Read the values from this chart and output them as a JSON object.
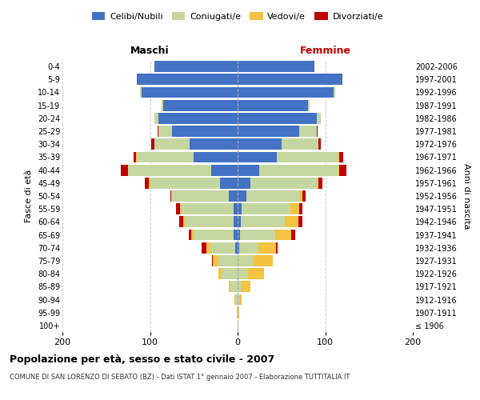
{
  "age_groups": [
    "100+",
    "95-99",
    "90-94",
    "85-89",
    "80-84",
    "75-79",
    "70-74",
    "65-69",
    "60-64",
    "55-59",
    "50-54",
    "45-49",
    "40-44",
    "35-39",
    "30-34",
    "25-29",
    "20-24",
    "15-19",
    "10-14",
    "5-9",
    "0-4"
  ],
  "birth_years": [
    "≤ 1906",
    "1907-1911",
    "1912-1916",
    "1917-1921",
    "1922-1926",
    "1927-1931",
    "1932-1936",
    "1937-1941",
    "1942-1946",
    "1947-1951",
    "1952-1956",
    "1957-1961",
    "1962-1966",
    "1967-1971",
    "1972-1976",
    "1977-1981",
    "1982-1986",
    "1987-1991",
    "1992-1996",
    "1997-2001",
    "2002-2006"
  ],
  "male": {
    "celibe": [
      0,
      0,
      0,
      0,
      0,
      0,
      3,
      5,
      5,
      5,
      10,
      20,
      30,
      50,
      55,
      75,
      90,
      85,
      110,
      115,
      95
    ],
    "coniugato": [
      0,
      1,
      3,
      8,
      18,
      22,
      28,
      45,
      55,
      60,
      65,
      80,
      95,
      65,
      40,
      15,
      5,
      2,
      1,
      0,
      0
    ],
    "vedovo": [
      0,
      0,
      1,
      2,
      4,
      6,
      5,
      3,
      2,
      1,
      1,
      1,
      0,
      1,
      0,
      0,
      0,
      0,
      0,
      0,
      0
    ],
    "divorziato": [
      0,
      0,
      0,
      0,
      0,
      1,
      5,
      3,
      5,
      4,
      1,
      5,
      8,
      3,
      4,
      1,
      0,
      0,
      0,
      0,
      0
    ]
  },
  "female": {
    "nubile": [
      0,
      0,
      0,
      0,
      0,
      0,
      2,
      3,
      4,
      5,
      10,
      15,
      25,
      45,
      50,
      70,
      90,
      80,
      110,
      120,
      88
    ],
    "coniugata": [
      0,
      1,
      2,
      5,
      12,
      18,
      22,
      40,
      50,
      55,
      60,
      75,
      90,
      70,
      42,
      20,
      5,
      2,
      1,
      0,
      0
    ],
    "vedova": [
      1,
      1,
      3,
      10,
      18,
      22,
      20,
      18,
      15,
      10,
      4,
      2,
      1,
      1,
      0,
      0,
      0,
      0,
      0,
      0,
      0
    ],
    "divorziata": [
      0,
      0,
      0,
      0,
      0,
      0,
      2,
      5,
      5,
      4,
      4,
      5,
      8,
      5,
      3,
      1,
      0,
      0,
      0,
      0,
      0
    ]
  },
  "colors": {
    "celibe": "#4472C4",
    "coniugato": "#C5D6A0",
    "vedovo": "#F5C242",
    "divorziato": "#C00000"
  },
  "title": "Popolazione per età, sesso e stato civile - 2007",
  "subtitle": "COMUNE DI SAN LORENZO DI SEBATO (BZ) - Dati ISTAT 1° gennaio 2007 - Elaborazione TUTTITALIA.IT",
  "xlabel_left": "Maschi",
  "xlabel_right": "Femmine",
  "ylabel": "Fasce di età",
  "ylabel_right": "Anni di nascita",
  "xlim": 200,
  "background_color": "#ffffff",
  "grid_color": "#cccccc"
}
